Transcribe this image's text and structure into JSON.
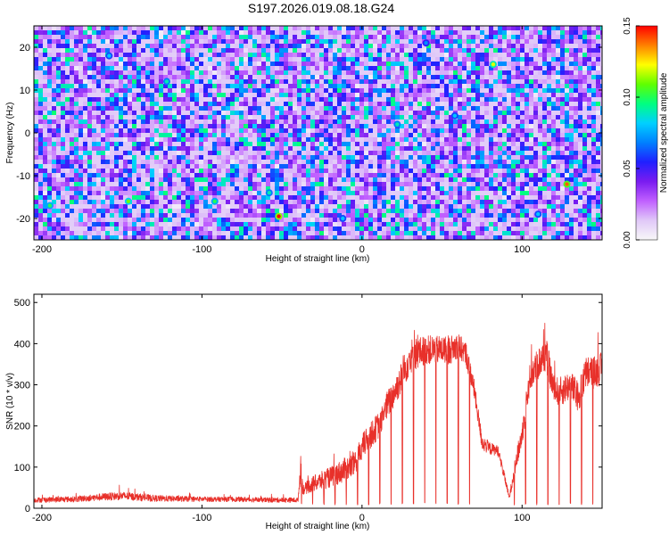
{
  "title": "S197.2026.019.08.18.G24",
  "colors": {
    "snr_line": "#e8302a",
    "spectrogram_background": "#6a3cf0",
    "frame": "#000000"
  },
  "colorscale": [
    "#f8f8f8",
    "#e0c8f8",
    "#c060ff",
    "#7a1cf0",
    "#2020ff",
    "#0080ff",
    "#00d0ff",
    "#00ff80",
    "#60ff00",
    "#ffff00",
    "#ff8000",
    "#ff0000"
  ],
  "chart_data": [
    {
      "type": "heatmap",
      "title": "S197.2026.019.08.18.G24",
      "xlabel": "Height of straight line (km)",
      "ylabel": "Frequency (Hz)",
      "xlim": [
        -205,
        150
      ],
      "ylim": [
        -25,
        25
      ],
      "xticks": [
        -200,
        -100,
        0,
        100
      ],
      "yticks": [
        -20,
        -10,
        0,
        10,
        20
      ],
      "xtick_labels": [
        "-200",
        "-100",
        "0",
        "100"
      ],
      "ytick_labels": [
        "-20",
        "-10",
        "0",
        "10",
        "20"
      ],
      "colorbar": {
        "label": "Normalized spectral amplitude",
        "range": [
          0,
          0.15
        ],
        "ticks": [
          0,
          0.05,
          0.1,
          0.15
        ],
        "tick_labels": [
          "0.00",
          "0.05",
          "0.10",
          "0.15"
        ]
      },
      "note": "Speckled spectrogram; mean amplitude ~0.03, peaks up to ~0.15",
      "hotspots": [
        {
          "x": -52,
          "y": -19.5,
          "value": 0.15
        },
        {
          "x": 128,
          "y": -12,
          "value": 0.14
        },
        {
          "x": 82,
          "y": 16,
          "value": 0.12
        },
        {
          "x": -146,
          "y": -16,
          "value": 0.11
        },
        {
          "x": -195,
          "y": -17,
          "value": 0.1
        },
        {
          "x": -122,
          "y": 12,
          "value": 0.09
        },
        {
          "x": -92,
          "y": -16,
          "value": 0.1
        },
        {
          "x": -58,
          "y": -14,
          "value": 0.09
        },
        {
          "x": 22,
          "y": 2,
          "value": 0.09
        },
        {
          "x": 58,
          "y": 4,
          "value": 0.08
        },
        {
          "x": -158,
          "y": 18,
          "value": 0.08
        },
        {
          "x": 110,
          "y": -19,
          "value": 0.08
        },
        {
          "x": -12,
          "y": -20,
          "value": 0.08
        },
        {
          "x": 40,
          "y": 21,
          "value": 0.07
        }
      ]
    },
    {
      "type": "line",
      "xlabel": "Height of straight line (km)",
      "ylabel": "SNR (10 * v/v)",
      "xlim": [
        -205,
        150
      ],
      "ylim": [
        0,
        520
      ],
      "xticks": [
        -200,
        -100,
        0,
        100
      ],
      "yticks": [
        0,
        100,
        200,
        300,
        400,
        500
      ],
      "xtick_labels": [
        "-200",
        "-100",
        "0",
        "100"
      ],
      "ytick_labels": [
        "0",
        "100",
        "200",
        "300",
        "400",
        "500"
      ],
      "series": [
        {
          "name": "SNR",
          "x": [
            -205,
            -180,
            -160,
            -150,
            -130,
            -100,
            -80,
            -60,
            -40,
            -38,
            -37,
            -30,
            -20,
            -10,
            -5,
            0,
            10,
            15,
            20,
            25,
            30,
            40,
            50,
            55,
            60,
            65,
            70,
            75,
            80,
            85,
            90,
            92,
            95,
            100,
            105,
            110,
            115,
            120,
            125,
            130,
            135,
            140,
            145,
            150
          ],
          "baseline": [
            20,
            22,
            28,
            30,
            24,
            22,
            22,
            20,
            20,
            110,
            45,
            60,
            75,
            95,
            105,
            150,
            200,
            245,
            280,
            320,
            370,
            385,
            385,
            385,
            395,
            375,
            290,
            160,
            145,
            140,
            60,
            25,
            90,
            180,
            320,
            350,
            375,
            285,
            285,
            300,
            270,
            330,
            330,
            340
          ],
          "noise": [
            12,
            14,
            18,
            20,
            16,
            12,
            12,
            12,
            12,
            70,
            25,
            40,
            50,
            60,
            60,
            60,
            65,
            70,
            70,
            80,
            85,
            70,
            70,
            70,
            60,
            60,
            50,
            40,
            30,
            25,
            20,
            10,
            40,
            60,
            70,
            80,
            85,
            70,
            70,
            75,
            75,
            80,
            80,
            80
          ]
        }
      ],
      "dropouts_start_km": -38,
      "dropout_spacing_km": 7,
      "dropout_min": 8,
      "quiet_zone": [
        68,
        93
      ],
      "max_value": 520
    }
  ]
}
